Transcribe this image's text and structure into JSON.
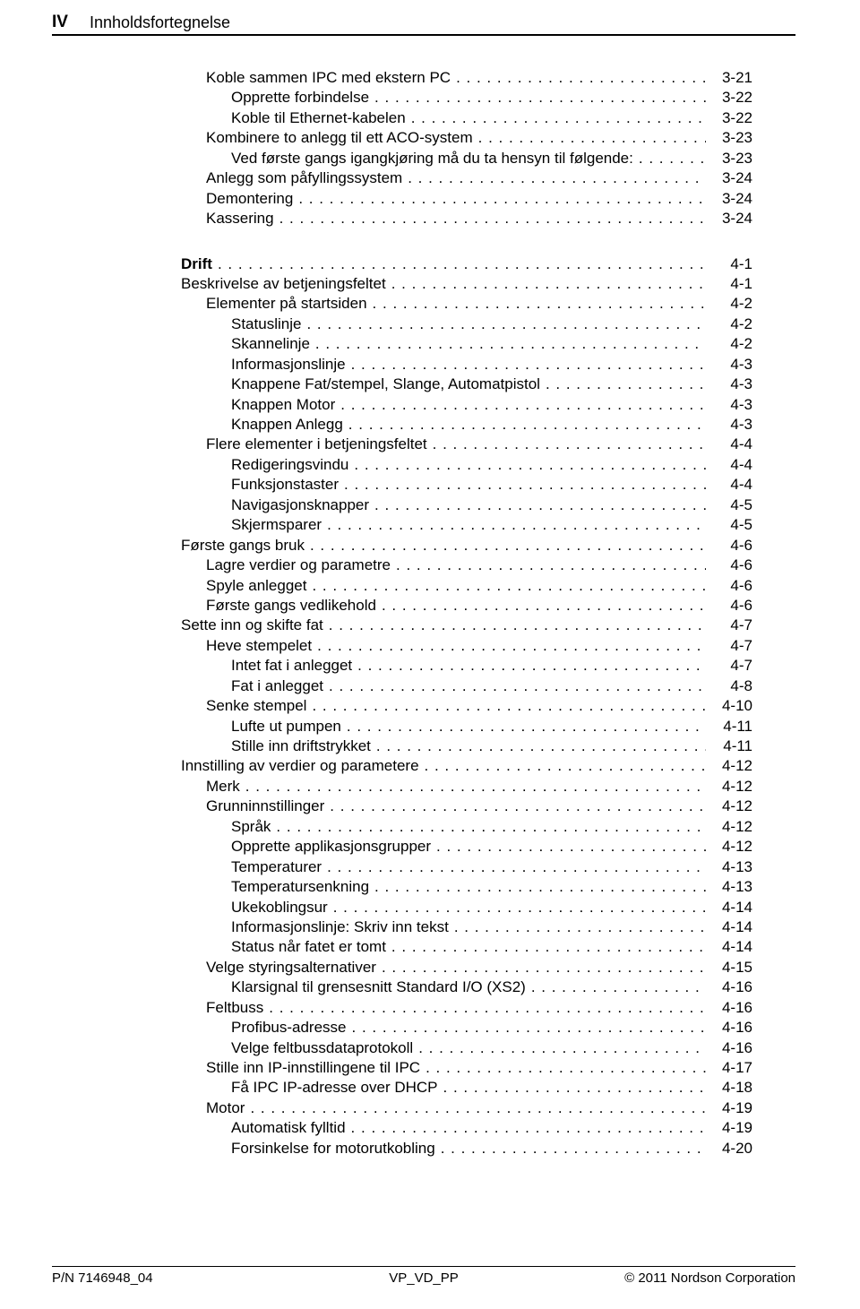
{
  "header": {
    "page_number": "IV",
    "title": "Innholdsfortegnelse"
  },
  "block1": [
    {
      "level": 1,
      "label": "Koble sammen IPC med ekstern PC",
      "page": "3-21"
    },
    {
      "level": 2,
      "label": "Opprette forbindelse",
      "page": "3-22"
    },
    {
      "level": 2,
      "label": "Koble til Ethernet-kabelen",
      "page": "3-22"
    },
    {
      "level": 1,
      "label": "Kombinere to anlegg til ett ACO-system",
      "page": "3-23"
    },
    {
      "level": 2,
      "label": "Ved første gangs igangkjøring må du ta hensyn til følgende:",
      "page": "3-23"
    },
    {
      "level": 1,
      "label": "Anlegg som påfyllingssystem",
      "page": "3-24"
    },
    {
      "level": 1,
      "label": "Demontering",
      "page": "3-24"
    },
    {
      "level": 1,
      "label": "Kassering",
      "page": "3-24"
    }
  ],
  "block2": [
    {
      "level": 0,
      "label": "Drift",
      "page": "4-1",
      "bold": true
    },
    {
      "level": 0,
      "label": "Beskrivelse av betjeningsfeltet",
      "page": "4-1"
    },
    {
      "level": 1,
      "label": "Elementer på startsiden",
      "page": "4-2"
    },
    {
      "level": 2,
      "label": "Statuslinje",
      "page": "4-2"
    },
    {
      "level": 2,
      "label": "Skannelinje",
      "page": "4-2"
    },
    {
      "level": 2,
      "label": "Informasjonslinje",
      "page": "4-3"
    },
    {
      "level": 2,
      "label": "Knappene Fat/stempel, Slange, Automatpistol",
      "page": "4-3"
    },
    {
      "level": 2,
      "label": "Knappen Motor",
      "page": "4-3"
    },
    {
      "level": 2,
      "label": "Knappen Anlegg",
      "page": "4-3"
    },
    {
      "level": 1,
      "label": "Flere elementer i betjeningsfeltet",
      "page": "4-4"
    },
    {
      "level": 2,
      "label": "Redigeringsvindu",
      "page": "4-4"
    },
    {
      "level": 2,
      "label": "Funksjonstaster",
      "page": "4-4"
    },
    {
      "level": 2,
      "label": "Navigasjonsknapper",
      "page": "4-5"
    },
    {
      "level": 2,
      "label": "Skjermsparer",
      "page": "4-5"
    },
    {
      "level": 0,
      "label": "Første gangs bruk",
      "page": "4-6"
    },
    {
      "level": 1,
      "label": "Lagre verdier og parametre",
      "page": "4-6"
    },
    {
      "level": 1,
      "label": "Spyle anlegget",
      "page": "4-6"
    },
    {
      "level": 1,
      "label": "Første gangs vedlikehold",
      "page": "4-6"
    },
    {
      "level": 0,
      "label": "Sette inn og skifte fat",
      "page": "4-7"
    },
    {
      "level": 1,
      "label": "Heve stempelet",
      "page": "4-7"
    },
    {
      "level": 2,
      "label": "Intet fat i anlegget",
      "page": "4-7"
    },
    {
      "level": 2,
      "label": "Fat i anlegget",
      "page": "4-8"
    },
    {
      "level": 1,
      "label": "Senke stempel",
      "page": "4-10"
    },
    {
      "level": 2,
      "label": "Lufte ut pumpen",
      "page": "4-11"
    },
    {
      "level": 2,
      "label": "Stille inn driftstrykket",
      "page": "4-11"
    },
    {
      "level": 0,
      "label": "Innstilling av verdier og parametere",
      "page": "4-12"
    },
    {
      "level": 1,
      "label": "Merk",
      "page": "4-12"
    },
    {
      "level": 1,
      "label": "Grunninnstillinger",
      "page": "4-12"
    },
    {
      "level": 2,
      "label": "Språk",
      "page": "4-12"
    },
    {
      "level": 2,
      "label": "Opprette applikasjonsgrupper",
      "page": "4-12"
    },
    {
      "level": 2,
      "label": "Temperaturer",
      "page": "4-13"
    },
    {
      "level": 2,
      "label": "Temperatursenkning",
      "page": "4-13"
    },
    {
      "level": 2,
      "label": "Ukekoblingsur",
      "page": "4-14"
    },
    {
      "level": 2,
      "label": "Informasjonslinje: Skriv inn tekst",
      "page": "4-14"
    },
    {
      "level": 2,
      "label": "Status når fatet er tomt",
      "page": "4-14"
    },
    {
      "level": 1,
      "label": "Velge styringsalternativer",
      "page": "4-15"
    },
    {
      "level": 2,
      "label": "Klarsignal til grensesnitt Standard I/O (XS2)",
      "page": "4-16"
    },
    {
      "level": 1,
      "label": "Feltbuss",
      "page": "4-16"
    },
    {
      "level": 2,
      "label": "Profibus-adresse",
      "page": "4-16"
    },
    {
      "level": 2,
      "label": "Velge feltbussdataprotokoll",
      "page": "4-16"
    },
    {
      "level": 1,
      "label": "Stille inn IP-innstillingene til IPC",
      "page": "4-17"
    },
    {
      "level": 2,
      "label": "Få IPC IP-adresse over DHCP",
      "page": "4-18"
    },
    {
      "level": 1,
      "label": "Motor",
      "page": "4-19"
    },
    {
      "level": 2,
      "label": "Automatisk fylltid",
      "page": "4-19"
    },
    {
      "level": 2,
      "label": "Forsinkelse for motorutkobling",
      "page": "4-20"
    }
  ],
  "footer": {
    "left": "P/N 7146948_04",
    "mid": "VP_VD_PP",
    "right_prefix": "© ",
    "right": "2011 Nordson Corporation"
  }
}
